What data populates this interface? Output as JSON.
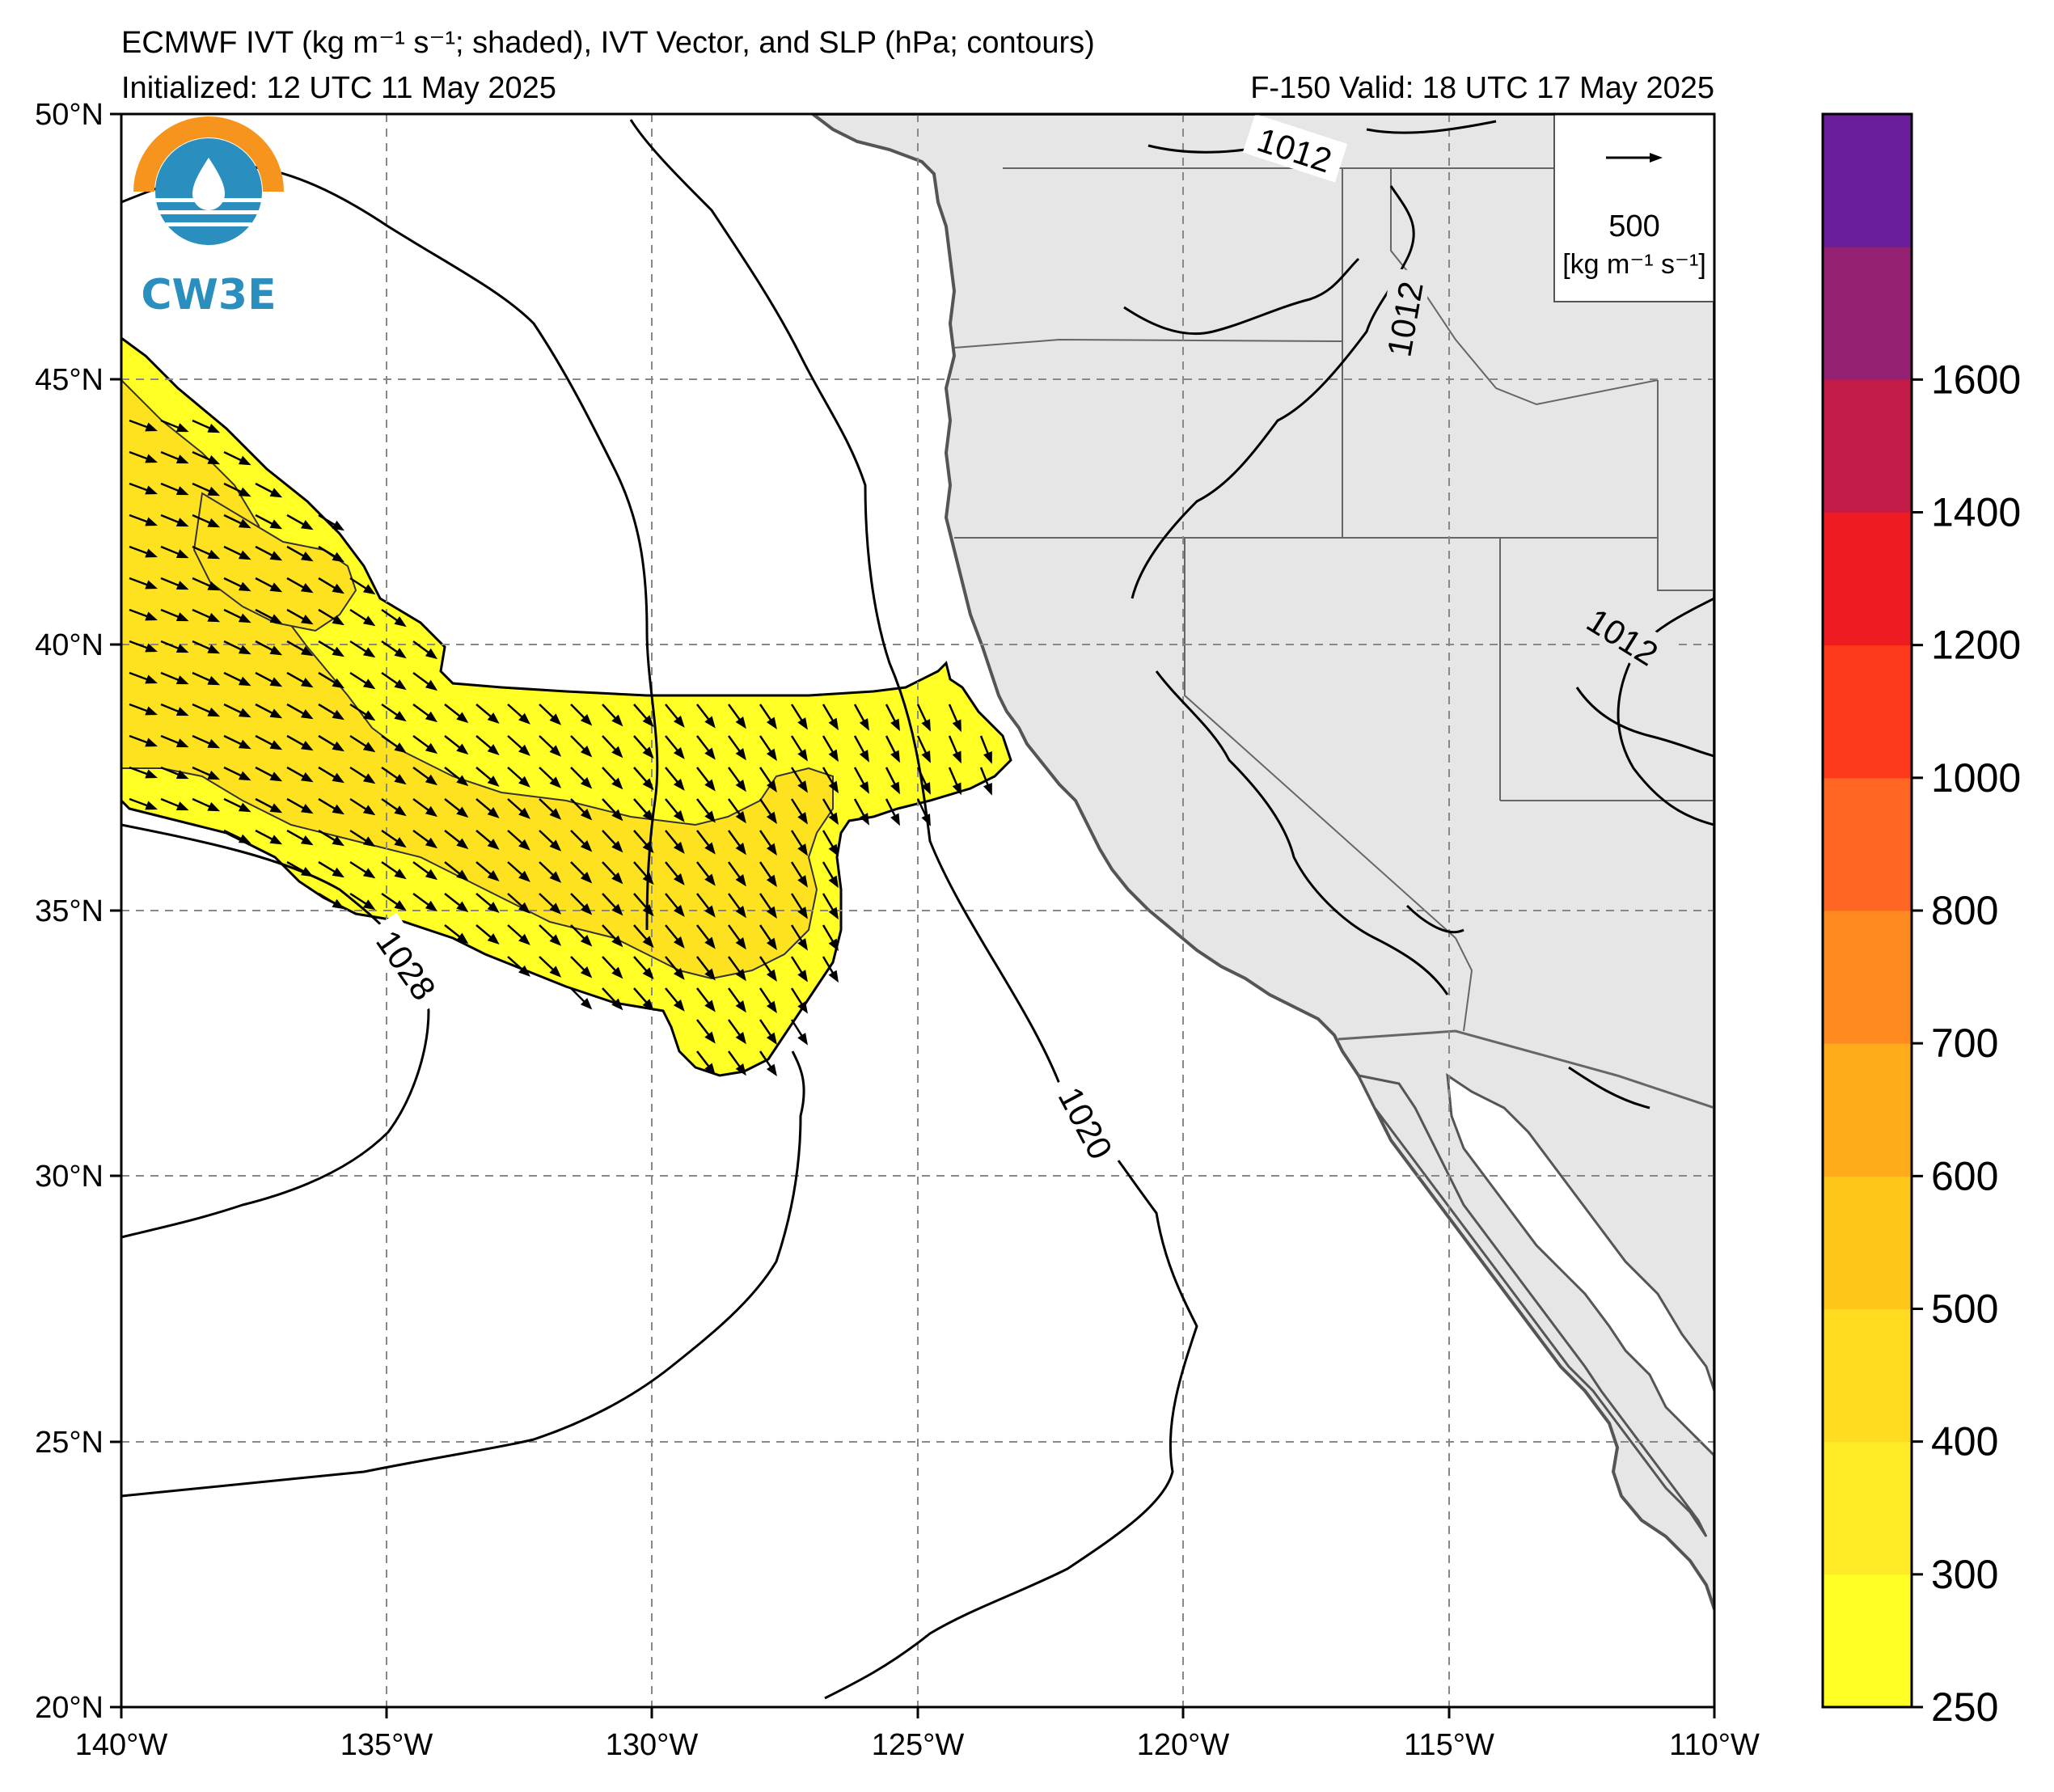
{
  "title": {
    "line1": "ECMWF IVT (kg m⁻¹ s⁻¹; shaded), IVT Vector, and SLP (hPa; contours)",
    "line2_left": "Initialized: 12 UTC 11 May 2025",
    "line2_right": "F-150  Valid: 18 UTC 17 May 2025"
  },
  "logo": {
    "text": "CW3E"
  },
  "map": {
    "lon_range": [
      -140,
      -110
    ],
    "lat_range": [
      20,
      50
    ],
    "lon_ticks": [
      "140°W",
      "135°W",
      "130°W",
      "125°W",
      "120°W",
      "115°W",
      "110°W"
    ],
    "lat_ticks": [
      "20°N",
      "25°N",
      "30°N",
      "35°N",
      "40°N",
      "45°N",
      "50°N"
    ],
    "grid": "dashed",
    "land_color": "#e6e6e6",
    "ocean_color": "#ffffff"
  },
  "vector_key": {
    "value": "500",
    "units": "[kg m⁻¹ s⁻¹]"
  },
  "slp_contour_labels": [
    {
      "text": "1012"
    },
    {
      "text": "1012"
    },
    {
      "text": "1012"
    },
    {
      "text": "1028"
    },
    {
      "text": "1020"
    }
  ],
  "colorbar": {
    "levels": [
      250,
      300,
      400,
      500,
      600,
      700,
      800,
      1000,
      1200,
      1400,
      1600
    ],
    "colors": [
      "#ffff26",
      "#ffeb26",
      "#ffdc1f",
      "#ffc61a",
      "#ffab1a",
      "#ff8a1f",
      "#ff6623",
      "#ff3a1c",
      "#ee1c22",
      "#c31c48",
      "#952173",
      "#6a1e9a"
    ],
    "tick_labels": [
      "250",
      "300",
      "400",
      "500",
      "600",
      "700",
      "800",
      "1000",
      "1200",
      "1400",
      "1600"
    ]
  }
}
